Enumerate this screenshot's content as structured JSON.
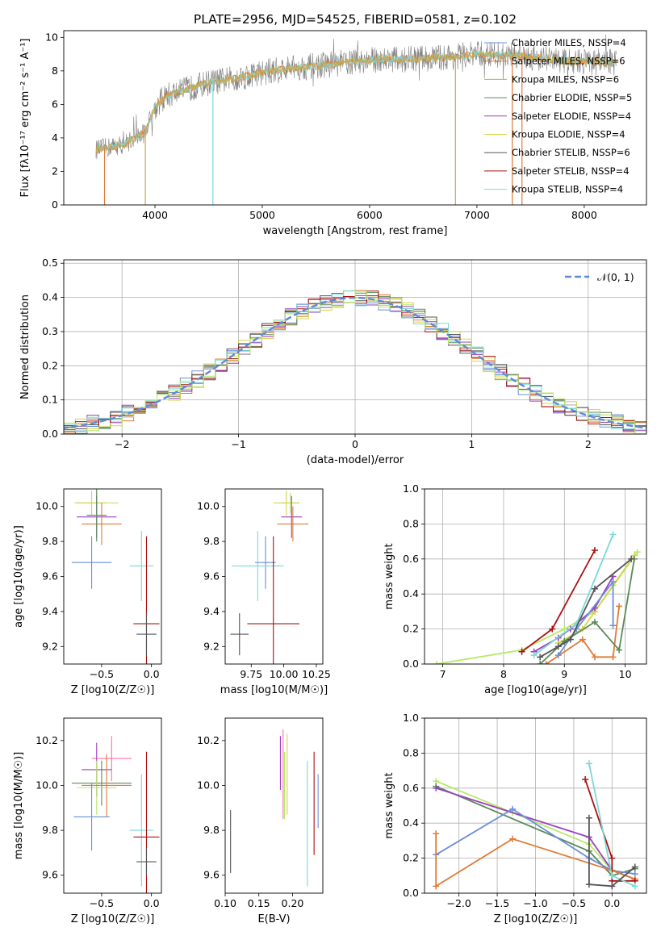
{
  "title": "PLATE=2956, MJD=54525, FIBERID=0581, z=0.102",
  "colors": [
    "#6a8fd8",
    "#e07b39",
    "#c8a94a",
    "#5a8a5a",
    "#9b3fbf",
    "#d4d44a",
    "#555555",
    "#aa1111",
    "#7dd8d8",
    "#ff69b4",
    "#b8e86a"
  ],
  "chart_data": [
    {
      "id": "spectrum",
      "type": "line",
      "xlabel": "wavelength [Angstrom, rest frame]",
      "ylabel": "Flux [fλ10⁻¹⁷ erg cm⁻² s⁻¹ A⁻¹]",
      "xlim": [
        3150,
        8580
      ],
      "ylim": [
        0,
        10.4
      ],
      "xticks": [
        "4000",
        "5000",
        "6000",
        "7000",
        "8000"
      ],
      "yticks": [
        "0",
        "2",
        "4",
        "6",
        "8",
        "10"
      ],
      "legend_placement": "top-right",
      "series": [
        {
          "name": "Chabrier MILES, NSSP=4",
          "color_index": 0
        },
        {
          "name": "Salpeter MILES, NSSP=6",
          "color_index": 1
        },
        {
          "name": "Kroupa MILES, NSSP=6",
          "color_index": 2
        },
        {
          "name": "Chabrier ELODIE, NSSP=5",
          "color_index": 3
        },
        {
          "name": "Salpeter ELODIE, NSSP=4",
          "color_index": 4
        },
        {
          "name": "Kroupa ELODIE, NSSP=4",
          "color_index": 5
        },
        {
          "name": "Chabrier STELIB, NSSP=6",
          "color_index": 6
        },
        {
          "name": "Salpeter STELIB, NSSP=4",
          "color_index": 7
        },
        {
          "name": "Kroupa STELIB, NSSP=4",
          "color_index": 8
        }
      ],
      "continuum_points": [
        [
          3450,
          3.3
        ],
        [
          3700,
          3.6
        ],
        [
          3900,
          4.3
        ],
        [
          4000,
          5.8
        ],
        [
          4100,
          6.5
        ],
        [
          4300,
          6.9
        ],
        [
          4500,
          7.3
        ],
        [
          4800,
          7.6
        ],
        [
          5000,
          7.9
        ],
        [
          5200,
          8.1
        ],
        [
          5500,
          8.3
        ],
        [
          5800,
          8.5
        ],
        [
          6100,
          8.7
        ],
        [
          6400,
          8.7
        ],
        [
          6700,
          8.8
        ],
        [
          7000,
          9.0
        ],
        [
          7400,
          8.9
        ],
        [
          7800,
          8.6
        ],
        [
          8300,
          8.5
        ]
      ]
    },
    {
      "id": "residuals",
      "type": "histogram",
      "xlabel": "(data-model)/error",
      "ylabel": "Normed distribution",
      "xlim": [
        -2.5,
        2.5
      ],
      "ylim": [
        0,
        0.51
      ],
      "xticks": [
        "−2",
        "−1",
        "0",
        "1",
        "2"
      ],
      "yticks": [
        "0.0",
        "0.1",
        "0.2",
        "0.3",
        "0.4",
        "0.5"
      ],
      "grid": true,
      "legend_placement": "top-right",
      "reference_label": "𝒩(0, 1)"
    },
    {
      "id": "age-vs-Z",
      "type": "scatter",
      "xlabel": "Z [log10(Z/Z☉)]",
      "ylabel": "age [log10(age/yr)]",
      "xlim": [
        -0.88,
        0.1
      ],
      "ylim": [
        9.1,
        10.1
      ],
      "xticks": [
        "−0.5",
        "0.0"
      ],
      "yticks": [
        "9.2",
        "9.4",
        "9.6",
        "9.8",
        "10.0"
      ],
      "points": [
        {
          "x": -0.55,
          "y": 10.02,
          "xerr": 0.22,
          "yerr": 0.06,
          "c": 10
        },
        {
          "x": -0.6,
          "y": 10.02,
          "xerr": 0.15,
          "yerr": 0.07,
          "c": 5
        },
        {
          "x": -0.55,
          "y": 9.94,
          "xerr": 0.2,
          "yerr": 0.12,
          "c": 4
        },
        {
          "x": -0.5,
          "y": 9.9,
          "xerr": 0.2,
          "yerr": 0.12,
          "c": 1
        },
        {
          "x": -0.55,
          "y": 9.95,
          "xerr": 0.1,
          "yerr": 0.15,
          "c": 3
        },
        {
          "x": -0.6,
          "y": 9.68,
          "xerr": 0.2,
          "yerr": 0.15,
          "c": 0
        },
        {
          "x": -0.1,
          "y": 9.66,
          "xerr": 0.12,
          "yerr": 0.2,
          "c": 8
        },
        {
          "x": -0.05,
          "y": 9.33,
          "xerr": 0.13,
          "yerr": 0.5,
          "c": 7
        },
        {
          "x": -0.05,
          "y": 9.27,
          "xerr": 0.1,
          "yerr": 0.12,
          "c": 6
        }
      ]
    },
    {
      "id": "age-vs-mass",
      "type": "scatter",
      "xlabel": "mass [log10(M/M☉)]",
      "ylabel": "",
      "xlim": [
        9.55,
        10.3
      ],
      "ylim": [
        9.1,
        10.1
      ],
      "xticks": [
        "9.75",
        "10.00",
        "10.25"
      ],
      "yticks": [
        "9.2",
        "9.4",
        "9.6",
        "9.8",
        "10.0"
      ],
      "points": [
        {
          "x": 10.05,
          "y": 10.02,
          "xerr": 0.07,
          "yerr": 0.06,
          "c": 10
        },
        {
          "x": 10.02,
          "y": 10.02,
          "xerr": 0.1,
          "yerr": 0.07,
          "c": 5
        },
        {
          "x": 10.06,
          "y": 9.94,
          "xerr": 0.08,
          "yerr": 0.12,
          "c": 4
        },
        {
          "x": 10.07,
          "y": 9.9,
          "xerr": 0.12,
          "yerr": 0.1,
          "c": 1
        },
        {
          "x": 9.86,
          "y": 9.68,
          "xerr": 0.08,
          "yerr": 0.15,
          "c": 0
        },
        {
          "x": 9.8,
          "y": 9.66,
          "xerr": 0.2,
          "yerr": 0.2,
          "c": 8
        },
        {
          "x": 9.92,
          "y": 9.33,
          "xerr": 0.2,
          "yerr": 0.5,
          "c": 7
        },
        {
          "x": 9.66,
          "y": 9.27,
          "xerr": 0.07,
          "yerr": 0.12,
          "c": 6
        }
      ]
    },
    {
      "id": "mass-weight-vs-age",
      "type": "line",
      "xlabel": "age [log10(age/yr)]",
      "ylabel": "mass weight",
      "xlim": [
        6.7,
        10.35
      ],
      "ylim": [
        0,
        1
      ],
      "xticks": [
        "7",
        "8",
        "9",
        "10"
      ],
      "yticks": [
        "0.0",
        "0.2",
        "0.4",
        "0.6",
        "0.8",
        "1.0"
      ],
      "grid": true,
      "series": [
        {
          "c": 10,
          "x": [
            6.9,
            8.3,
            9.0,
            9.5,
            10.2
          ],
          "y": [
            0.0,
            0.08,
            0.2,
            0.3,
            0.64
          ]
        },
        {
          "c": 5,
          "x": [
            8.9,
            9.3,
            9.5,
            9.8,
            10.15
          ],
          "y": [
            0.12,
            0.2,
            0.3,
            0.45,
            0.62
          ]
        },
        {
          "c": 4,
          "x": [
            8.5,
            8.9,
            9.1,
            9.5,
            9.8
          ],
          "y": [
            0.07,
            0.15,
            0.2,
            0.32,
            0.5
          ]
        },
        {
          "c": 1,
          "x": [
            8.7,
            9.3,
            9.5,
            9.8,
            9.9
          ],
          "y": [
            0.0,
            0.14,
            0.04,
            0.04,
            0.33
          ]
        },
        {
          "c": 0,
          "x": [
            8.9,
            9.2,
            9.8,
            9.8
          ],
          "y": [
            0.05,
            0.2,
            0.47,
            0.22
          ]
        },
        {
          "c": 3,
          "x": [
            8.6,
            9.0,
            9.5,
            9.9,
            10.15
          ],
          "y": [
            0.0,
            0.13,
            0.24,
            0.08,
            0.6
          ]
        },
        {
          "c": 7,
          "x": [
            8.3,
            8.8,
            9.5
          ],
          "y": [
            0.07,
            0.2,
            0.65
          ]
        },
        {
          "c": 8,
          "x": [
            8.5,
            9.2,
            9.8
          ],
          "y": [
            0.05,
            0.23,
            0.74
          ]
        },
        {
          "c": 6,
          "x": [
            8.6,
            8.9,
            9.1,
            9.5,
            10.1
          ],
          "y": [
            0.04,
            0.1,
            0.14,
            0.43,
            0.6
          ]
        }
      ]
    },
    {
      "id": "mass-vs-Z",
      "type": "scatter",
      "xlabel": "Z [log10(Z/Z☉)]",
      "ylabel": "mass [log10(M/M☉)]",
      "xlim": [
        -0.88,
        0.1
      ],
      "ylim": [
        9.52,
        10.3
      ],
      "xticks": [
        "−0.5",
        "0.0"
      ],
      "yticks": [
        "9.6",
        "9.8",
        "10.0",
        "10.2"
      ],
      "points": [
        {
          "x": -0.4,
          "y": 10.12,
          "xerr": 0.2,
          "yerr": 0.1,
          "c": 9
        },
        {
          "x": -0.55,
          "y": 10.07,
          "xerr": 0.15,
          "yerr": 0.12,
          "c": 4
        },
        {
          "x": -0.5,
          "y": 10.01,
          "xerr": 0.3,
          "yerr": 0.1,
          "c": 3
        },
        {
          "x": -0.55,
          "y": 9.99,
          "xerr": 0.2,
          "yerr": 0.12,
          "c": 10
        },
        {
          "x": -0.45,
          "y": 10.0,
          "xerr": 0.25,
          "yerr": 0.14,
          "c": 1
        },
        {
          "x": -0.6,
          "y": 9.86,
          "xerr": 0.18,
          "yerr": 0.15,
          "c": 0
        },
        {
          "x": -0.1,
          "y": 9.8,
          "xerr": 0.12,
          "yerr": 0.25,
          "c": 8
        },
        {
          "x": -0.05,
          "y": 9.77,
          "xerr": 0.13,
          "yerr": 0.38,
          "c": 7
        },
        {
          "x": -0.05,
          "y": 9.66,
          "xerr": 0.1,
          "yerr": 0.06,
          "c": 6
        }
      ]
    },
    {
      "id": "mass-vs-ebv",
      "type": "scatter",
      "xlabel": "E(B-V)",
      "ylabel": "",
      "xlim": [
        0.1,
        0.245
      ],
      "ylim": [
        9.52,
        10.3
      ],
      "xticks": [
        "0.10",
        "0.15",
        "0.20"
      ],
      "yticks": [
        "9.6",
        "9.8",
        "10.0",
        "10.2"
      ],
      "points": [
        {
          "x": 0.108,
          "y": 9.75,
          "yerr": 0.14,
          "c": 6
        },
        {
          "x": 0.182,
          "y": 10.1,
          "yerr": 0.12,
          "c": 4
        },
        {
          "x": 0.186,
          "y": 10.05,
          "yerr": 0.2,
          "c": 9
        },
        {
          "x": 0.188,
          "y": 10.0,
          "yerr": 0.15,
          "c": 10
        },
        {
          "x": 0.192,
          "y": 10.05,
          "yerr": 0.18,
          "c": 5
        },
        {
          "x": 0.222,
          "y": 9.83,
          "yerr": 0.28,
          "c": 8
        },
        {
          "x": 0.232,
          "y": 9.92,
          "yerr": 0.23,
          "c": 7
        },
        {
          "x": 0.238,
          "y": 9.93,
          "yerr": 0.12,
          "c": 0
        }
      ]
    },
    {
      "id": "mass-weight-vs-Z",
      "type": "line",
      "xlabel": "Z [log10(Z/Z☉)]",
      "ylabel": "mass weight",
      "xlim": [
        -2.45,
        0.45
      ],
      "ylim": [
        0,
        1
      ],
      "xticks": [
        "−2.0",
        "−1.5",
        "−1.0",
        "−0.5",
        "0.0"
      ],
      "yticks": [
        "0.0",
        "0.2",
        "0.4",
        "0.6",
        "0.8",
        "1.0"
      ],
      "grid": true,
      "series": [
        {
          "c": 10,
          "x": [
            -2.3,
            -1.3,
            -0.3,
            0.0,
            0.3
          ],
          "y": [
            0.64,
            0.46,
            0.28,
            0.13,
            0.08
          ]
        },
        {
          "c": 3,
          "x": [
            -2.3,
            -0.3,
            0.0,
            0.3
          ],
          "y": [
            0.61,
            0.24,
            0.1,
            0.14
          ]
        },
        {
          "c": 4,
          "x": [
            -2.3,
            -0.3,
            0.0,
            0.3
          ],
          "y": [
            0.6,
            0.32,
            0.13,
            0.08
          ]
        },
        {
          "c": 0,
          "x": [
            -2.3,
            -1.3,
            -0.3,
            0.0,
            0.3
          ],
          "y": [
            0.22,
            0.48,
            0.2,
            0.13,
            0.11
          ]
        },
        {
          "c": 1,
          "x": [
            -2.3,
            -2.3,
            -1.3,
            0.0,
            0.3
          ],
          "y": [
            0.34,
            0.04,
            0.31,
            0.13,
            0.08
          ]
        },
        {
          "c": 7,
          "x": [
            -0.35,
            0.0,
            0.0,
            0.3
          ],
          "y": [
            0.65,
            0.2,
            0.07,
            0.07
          ]
        },
        {
          "c": 8,
          "x": [
            -0.3,
            0.0,
            0.3
          ],
          "y": [
            0.74,
            0.1,
            0.04
          ]
        },
        {
          "c": 6,
          "x": [
            -0.3,
            -0.3,
            0.0,
            0.3
          ],
          "y": [
            0.43,
            0.05,
            0.04,
            0.15
          ]
        }
      ]
    }
  ]
}
